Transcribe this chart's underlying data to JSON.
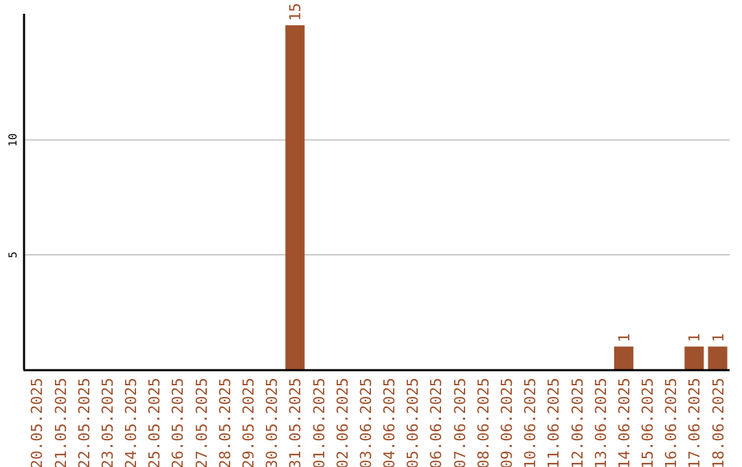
{
  "chart_data": {
    "type": "bar",
    "categories": [
      "20.05.2025",
      "21.05.2025",
      "22.05.2025",
      "23.05.2025",
      "24.05.2025",
      "25.05.2025",
      "26.05.2025",
      "27.05.2025",
      "28.05.2025",
      "29.05.2025",
      "30.05.2025",
      "31.05.2025",
      "01.06.2025",
      "02.06.2025",
      "03.06.2025",
      "04.06.2025",
      "05.06.2025",
      "06.06.2025",
      "07.06.2025",
      "08.06.2025",
      "09.06.2025",
      "10.06.2025",
      "11.06.2025",
      "12.06.2025",
      "13.06.2025",
      "14.06.2025",
      "15.06.2025",
      "16.06.2025",
      "17.06.2025",
      "18.06.2025"
    ],
    "values": [
      0,
      0,
      0,
      0,
      0,
      0,
      0,
      0,
      0,
      0,
      0,
      15,
      0,
      0,
      0,
      0,
      0,
      0,
      0,
      0,
      0,
      0,
      0,
      0,
      0,
      1,
      0,
      0,
      1,
      1
    ],
    "value_labels": [
      null,
      null,
      null,
      null,
      null,
      null,
      null,
      null,
      null,
      null,
      null,
      "15",
      null,
      null,
      null,
      null,
      null,
      null,
      null,
      null,
      null,
      null,
      null,
      null,
      null,
      "1",
      null,
      null,
      "1",
      "1"
    ],
    "color": "#a0522d",
    "ylim": [
      0,
      15.5
    ],
    "yticks": [
      5,
      10
    ],
    "grid": "y"
  }
}
